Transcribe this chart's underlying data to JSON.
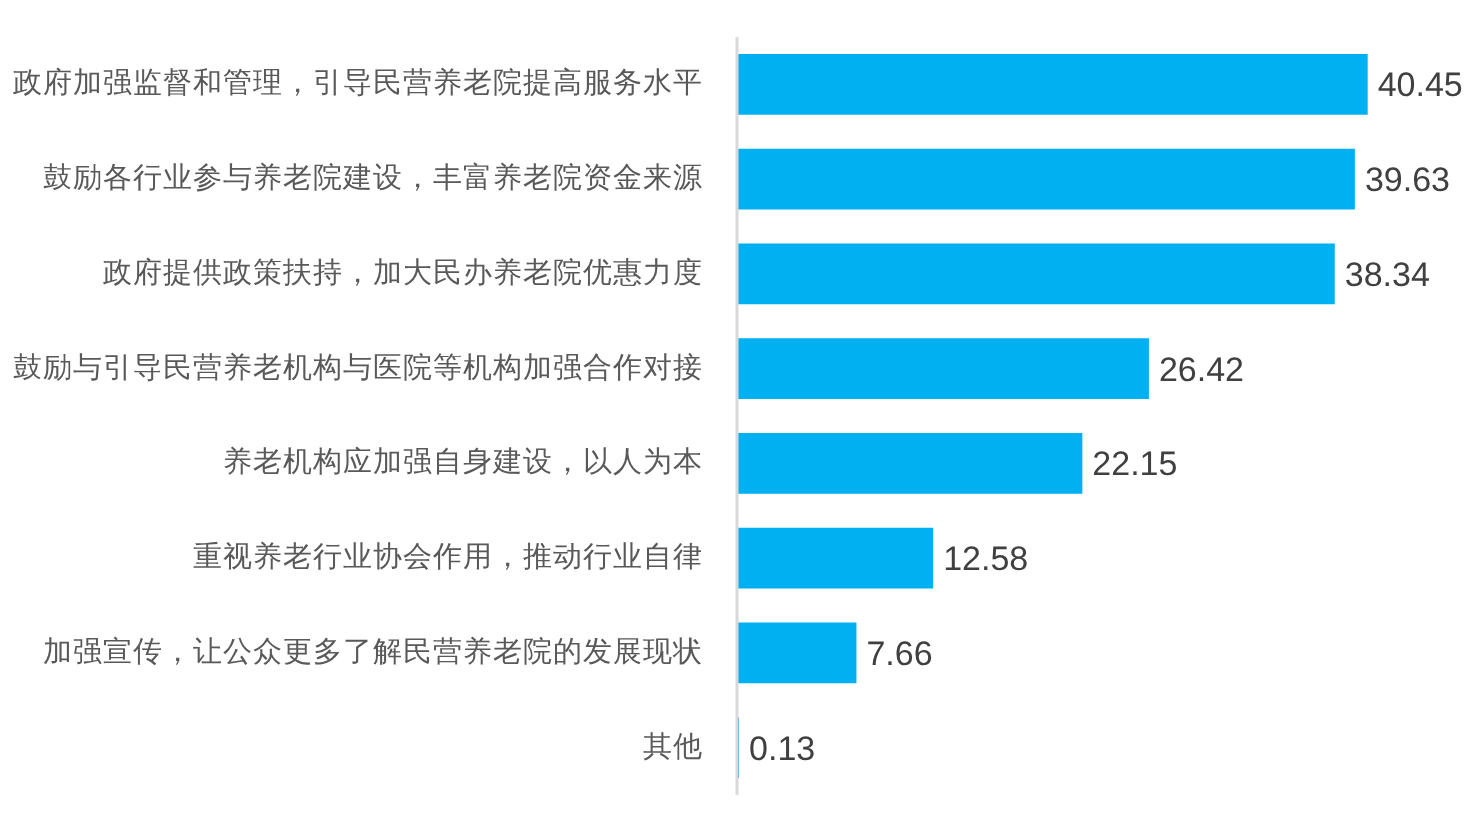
{
  "chart_data": {
    "type": "bar",
    "orientation": "horizontal",
    "categories": [
      "政府加强监督和管理，引导民营养老院提高服务水平",
      "鼓励各行业参与养老院建设，丰富养老院资金来源",
      "政府提供政策扶持，加大民办养老院优惠力度",
      "鼓励与引导民营养老机构与医院等机构加强合作对接",
      "养老机构应加强自身建设，以人为本",
      "重视养老行业协会作用，推动行业自律",
      "加强宣传，让公众更多了解民营养老院的发展现状",
      "其他"
    ],
    "values": [
      40.45,
      39.63,
      38.34,
      26.42,
      22.15,
      12.58,
      7.66,
      0.13
    ],
    "color": "#00b0f0",
    "data_labels": true,
    "tick_labels": "y",
    "grid": false
  }
}
